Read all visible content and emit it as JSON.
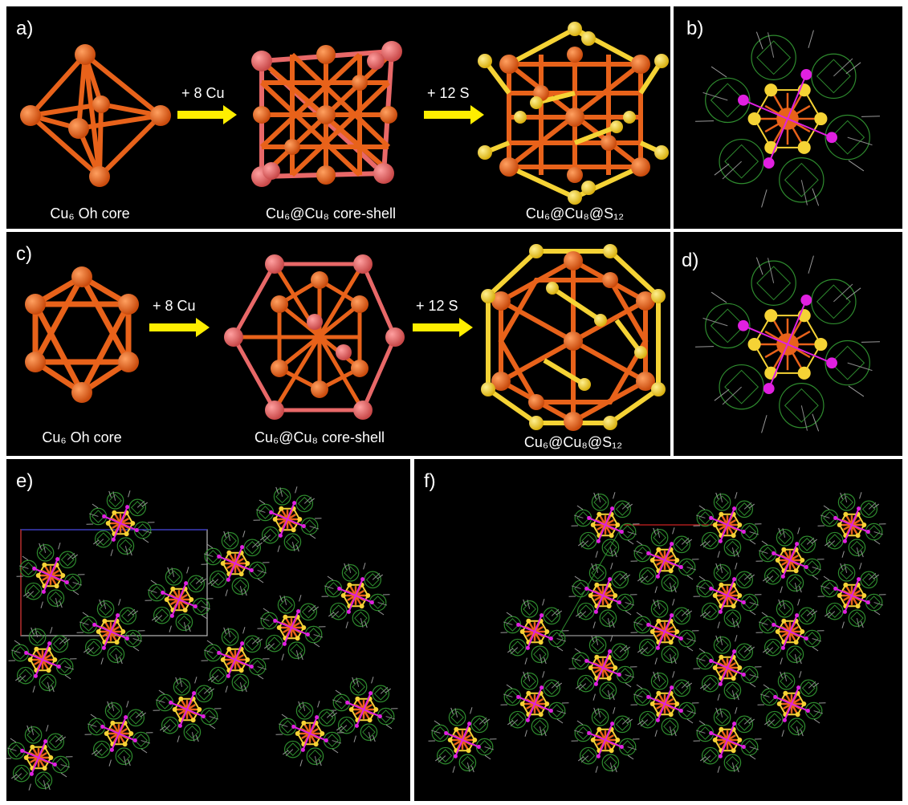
{
  "panels": {
    "a": {
      "label": "a)",
      "cap1": "Cu₆ Oh core",
      "arrow1": "+ 8 Cu",
      "cap2": "Cu₆@Cu₈ core-shell",
      "arrow2": "+ 12 S",
      "cap3": "Cu₆@Cu₈@S₁₂"
    },
    "b": {
      "label": "b)"
    },
    "c": {
      "label": "c)",
      "cap1": "Cu₆ Oh core",
      "arrow1": "+ 8 Cu",
      "cap2": "Cu₆@Cu₈ core-shell",
      "arrow2": "+ 12 S",
      "cap3": "Cu₆@Cu₈@S₁₂"
    },
    "d": {
      "label": "d)"
    },
    "e": {
      "label": "e)"
    },
    "f": {
      "label": "f)"
    }
  },
  "colors": {
    "background": "#000000",
    "copper_core": "#e8621a",
    "copper_shell": "#e86868",
    "sulfur": "#f5d335",
    "carborane": "#2e8b2e",
    "phosphorus_h": "#e020e0",
    "arrow": "#ffee00",
    "unit_cell_a": "#cc2222",
    "unit_cell_b": "#3333cc"
  }
}
